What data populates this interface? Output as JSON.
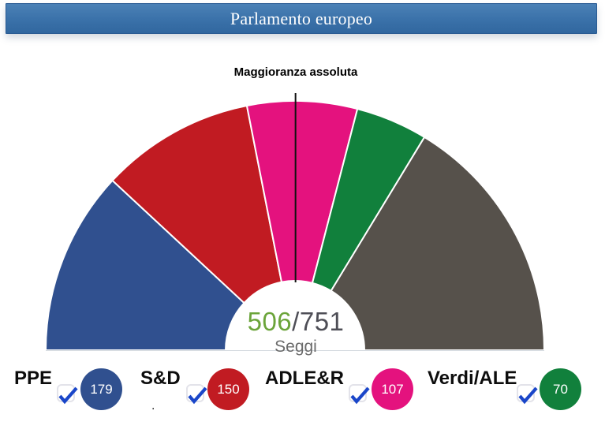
{
  "header": {
    "title": "Parlamento europeo"
  },
  "chart_data": {
    "type": "hemicycle",
    "title": "Parlamento europeo",
    "majority_label": "Maggioranza assoluta",
    "majority_threshold": 376,
    "total_seats": 751,
    "selected_seats": 506,
    "center": {
      "selected": "506",
      "separator": "/",
      "total": "751",
      "unit_label": "Seggi"
    },
    "series": [
      {
        "name": "PPE",
        "seats": 179,
        "color": "#30508F",
        "checked": true
      },
      {
        "name": "S&D",
        "seats": 150,
        "color": "#C11B22",
        "checked": true
      },
      {
        "name": "ADLE&R",
        "seats": 107,
        "color": "#E4127E",
        "checked": true
      },
      {
        "name": "Verdi/ALE",
        "seats": 70,
        "color": "#11803C",
        "checked": true
      }
    ],
    "remainder": {
      "seats": 245,
      "color": "#56514B"
    },
    "layout": {
      "legend_position": "bottom",
      "grid": false
    }
  },
  "legend": {
    "stray_dot": "."
  },
  "colors": {
    "check": "#1a46c9",
    "accent_bar": "#3a71a9"
  }
}
